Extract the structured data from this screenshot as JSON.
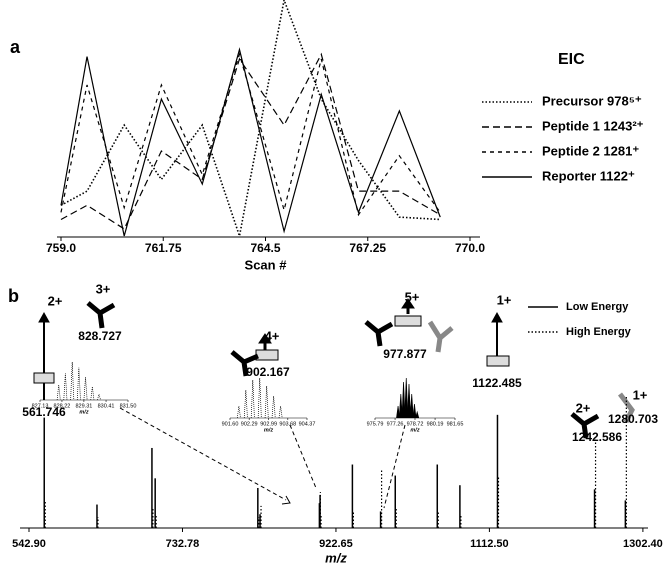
{
  "chart_data": [
    {
      "type": "line",
      "panel": "a",
      "legend_title": "EIC",
      "xlabel": "Scan #",
      "x": [
        759.0,
        759.7,
        760.7,
        761.7,
        762.8,
        763.8,
        765.0,
        766.0,
        767.0,
        768.1,
        769.2
      ],
      "xlim": [
        759,
        770
      ],
      "xticks": [
        {
          "value": 759,
          "label": "759.0"
        },
        761.75,
        764.5,
        767.25,
        {
          "value": 770,
          "label": "770.0"
        }
      ],
      "ylim": [
        0,
        100
      ],
      "series": [
        {
          "name": "Precursor 978⁵⁺",
          "color": "#000000",
          "dash": "dotted",
          "values": [
            13,
            19,
            47,
            24,
            47,
            0,
            100,
            58,
            32,
            8,
            7
          ]
        },
        {
          "name": "Peptide 1  1243²⁺",
          "color": "#000000",
          "dash": "long",
          "values": [
            7,
            13,
            3,
            36,
            24,
            75,
            47,
            77,
            19,
            19,
            9
          ]
        },
        {
          "name": "Peptide 2  1281⁺",
          "color": "#000000",
          "dash": "short",
          "values": [
            10,
            64,
            12,
            64,
            26,
            77,
            11,
            75,
            9,
            34,
            10
          ]
        },
        {
          "name": "Reporter 1122⁺",
          "color": "#000000",
          "dash": "solid",
          "values": [
            13,
            76,
            0,
            58,
            22,
            79,
            2,
            60,
            10,
            53,
            8
          ]
        }
      ]
    },
    {
      "type": "stem",
      "panel": "b",
      "xlabel": "m/z",
      "xlim": [
        542.9,
        1305
      ],
      "xticks": [
        {
          "value": 542.9,
          "label": "542.90"
        },
        732.78,
        922.65,
        {
          "value": 1112.5,
          "label": "1112.50"
        },
        {
          "value": 1302.4,
          "label": "1302.40"
        }
      ],
      "ylim": [
        0,
        100
      ],
      "x": [
        561.746,
        627,
        695,
        699,
        826,
        828.727,
        902.167,
        903,
        943,
        977.877,
        996,
        1048,
        1076,
        1122.485,
        1242.586,
        1280.703
      ],
      "series": [
        {
          "name": "Low Energy",
          "color": "#000000",
          "dash": "solid",
          "values": [
            80,
            17,
            58,
            36,
            29,
            10,
            18,
            24,
            46,
            12,
            38,
            46,
            31,
            82,
            28,
            20
          ]
        },
        {
          "name": "High Energy",
          "color": "#000000",
          "dash": "dotted",
          "values": [
            20,
            8,
            15,
            10,
            8,
            16,
            26,
            10,
            12,
            42,
            14,
            12,
            10,
            38,
            64,
            96
          ]
        }
      ],
      "annotations": [
        {
          "value": 561.746,
          "charge": "2+"
        },
        {
          "value": 828.727,
          "charge": "3+"
        },
        {
          "value": 902.167,
          "charge": "4+"
        },
        {
          "value": 977.877,
          "charge": "5+"
        },
        {
          "value": 1122.485,
          "charge": "1+"
        },
        {
          "value": 1242.586,
          "charge": "2+"
        },
        {
          "value": 1280.703,
          "charge": "1+"
        }
      ],
      "insets": [
        {
          "xlabel": "m/z",
          "xlim": [
            827.13,
            831.5
          ],
          "ylim": [
            0,
            100
          ],
          "xticks": [
            827.13,
            828.22,
            829.31,
            830.41,
            {
              "value": 831.5,
              "label": "831.50"
            }
          ],
          "x": [
            828.06,
            828.39,
            828.73,
            829.06,
            829.39,
            829.73,
            830.06
          ],
          "values": [
            40,
            70,
            100,
            85,
            60,
            35,
            15
          ]
        },
        {
          "xlabel": "m/z",
          "xlim": [
            901.6,
            904.37
          ],
          "ylim": [
            0,
            100
          ],
          "xticks": [
            {
              "value": 901.6,
              "label": "901.60"
            },
            902.29,
            902.99,
            903.68,
            904.37
          ],
          "x": [
            901.92,
            902.17,
            902.42,
            902.67,
            902.92,
            903.17,
            903.42
          ],
          "values": [
            30,
            70,
            95,
            100,
            80,
            55,
            30
          ]
        },
        {
          "xlabel": "m/z",
          "xlim": [
            975.79,
            981.65
          ],
          "ylim": [
            0,
            100
          ],
          "xticks": [
            975.79,
            977.26,
            978.72,
            980.19,
            981.65
          ],
          "x": [
            977.48,
            977.68,
            977.88,
            978.08,
            978.28,
            978.48,
            978.68,
            978.88
          ],
          "values": [
            30,
            60,
            90,
            100,
            85,
            60,
            35,
            15
          ]
        }
      ]
    }
  ]
}
